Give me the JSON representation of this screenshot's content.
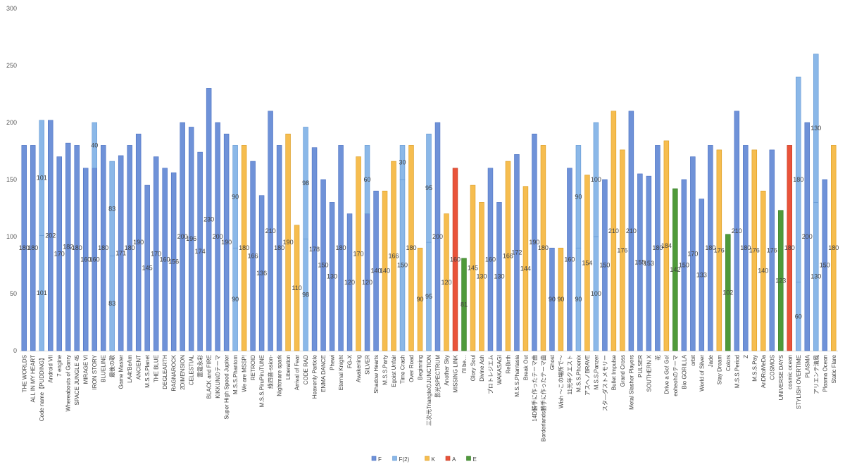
{
  "chart_data": {
    "type": "bar",
    "stacked": true,
    "ylim": [
      0,
      300
    ],
    "yticks": [
      0,
      50,
      100,
      150,
      200,
      250,
      300
    ],
    "grid": false,
    "legend_position": "bottom",
    "colors": {
      "F": "#6f92d8",
      "F(2)": "#8bb8e8",
      "K": "#f6bd4f",
      "A": "#e9533a",
      "E": "#4f9a3a"
    },
    "bars": [
      {
        "label": "THE WORLDS",
        "segments": [
          {
            "s": "F",
            "v": 180
          }
        ],
        "labels": [
          "180"
        ]
      },
      {
        "label": "ALL IN MY HEART",
        "segments": [
          {
            "s": "F",
            "v": 180
          }
        ],
        "labels": [
          "180"
        ]
      },
      {
        "label": "Code name【PUDDING】",
        "segments": [
          {
            "s": "F(2)",
            "v": 101
          },
          {
            "s": "F(2)",
            "v": 101
          }
        ],
        "labels": [
          "101",
          "101"
        ]
      },
      {
        "label": "Android VII",
        "segments": [
          {
            "s": "F",
            "v": 202
          }
        ],
        "labels": [
          "202"
        ]
      },
      {
        "label": "7 engine",
        "segments": [
          {
            "s": "F",
            "v": 170
          }
        ],
        "labels": [
          "170"
        ]
      },
      {
        "label": "Whereabouts of Ganry",
        "segments": [
          {
            "s": "F",
            "v": 182
          }
        ],
        "labels": [
          "182"
        ]
      },
      {
        "label": "SPACE JUNGLE 45",
        "segments": [
          {
            "s": "F",
            "v": 180
          }
        ],
        "labels": [
          "180"
        ]
      },
      {
        "label": "MIRAGE VI",
        "segments": [
          {
            "s": "F",
            "v": 160
          }
        ],
        "labels": [
          "160"
        ]
      },
      {
        "label": "IRON STORY",
        "segments": [
          {
            "s": "F",
            "v": 160
          },
          {
            "s": "F(2)",
            "v": 40
          }
        ],
        "labels": [
          "160",
          "40"
        ]
      },
      {
        "label": "BLUELINE",
        "segments": [
          {
            "s": "F",
            "v": 180
          }
        ],
        "labels": [
          "180"
        ]
      },
      {
        "label": "最後の歌",
        "segments": [
          {
            "s": "F(2)",
            "v": 83
          },
          {
            "s": "F(2)",
            "v": 83
          }
        ],
        "labels": [
          "83",
          "83"
        ]
      },
      {
        "label": "Game Master",
        "segments": [
          {
            "s": "F",
            "v": 171
          }
        ],
        "labels": [
          "171"
        ]
      },
      {
        "label": "LA4t'BeAm",
        "segments": [
          {
            "s": "F",
            "v": 180
          }
        ],
        "labels": [
          "180"
        ]
      },
      {
        "label": "ANCIENT",
        "segments": [
          {
            "s": "F",
            "v": 190
          }
        ],
        "labels": [
          "190"
        ]
      },
      {
        "label": "M.S.S.Planet",
        "segments": [
          {
            "s": "F",
            "v": 145
          }
        ],
        "labels": [
          "145"
        ]
      },
      {
        "label": "THE BLUE",
        "segments": [
          {
            "s": "F",
            "v": 170
          }
        ],
        "labels": [
          "170"
        ]
      },
      {
        "label": "DEGLEARTH",
        "segments": [
          {
            "s": "F",
            "v": 160
          }
        ],
        "labels": [
          "160"
        ]
      },
      {
        "label": "RAGNAROCK",
        "segments": [
          {
            "s": "F",
            "v": 156
          }
        ],
        "labels": [
          "156"
        ]
      },
      {
        "label": "2DIMENSION",
        "segments": [
          {
            "s": "F",
            "v": 200
          }
        ],
        "labels": [
          "200"
        ]
      },
      {
        "label": "CELESTIAL",
        "segments": [
          {
            "s": "F",
            "v": 196
          }
        ],
        "labels": [
          "196"
        ]
      },
      {
        "label": "雷霆永彩",
        "segments": [
          {
            "s": "F",
            "v": 174
          }
        ],
        "labels": [
          "174"
        ]
      },
      {
        "label": "BLACK and FIRE",
        "segments": [
          {
            "s": "F",
            "v": 230
          }
        ],
        "labels": [
          "230"
        ]
      },
      {
        "label": "KIKKUNのテーマ",
        "segments": [
          {
            "s": "F",
            "v": 200
          }
        ],
        "labels": [
          "200"
        ]
      },
      {
        "label": "Super High Speed Jupiter",
        "segments": [
          {
            "s": "F",
            "v": 190
          }
        ],
        "labels": [
          "190"
        ]
      },
      {
        "label": "M.S.S.Phantom",
        "segments": [
          {
            "s": "F(2)",
            "v": 90
          },
          {
            "s": "F(2)",
            "v": 90
          }
        ],
        "labels": [
          "90",
          "90"
        ]
      },
      {
        "label": "We are MSSP!",
        "segments": [
          {
            "s": "K",
            "v": 180
          }
        ],
        "labels": [
          "180"
        ]
      },
      {
        "label": "RETROID",
        "segments": [
          {
            "s": "F",
            "v": 166
          }
        ],
        "labels": [
          "166"
        ]
      },
      {
        "label": "M.S.S.PiruPiruTUNE",
        "segments": [
          {
            "s": "F",
            "v": 136
          }
        ],
        "labels": [
          "136"
        ]
      },
      {
        "label": "綠四音-ssion-",
        "segments": [
          {
            "s": "F",
            "v": 210
          }
        ],
        "labels": [
          "210"
        ]
      },
      {
        "label": "Nightmare spark",
        "segments": [
          {
            "s": "F",
            "v": 180
          }
        ],
        "labels": [
          "180"
        ]
      },
      {
        "label": "Liberation",
        "segments": [
          {
            "s": "K",
            "v": 190
          }
        ],
        "labels": [
          "190"
        ]
      },
      {
        "label": "Arrival of Fear",
        "segments": [
          {
            "s": "K",
            "v": 110
          }
        ],
        "labels": [
          "110"
        ]
      },
      {
        "label": "CODE RAD",
        "segments": [
          {
            "s": "F(2)",
            "v": 98
          },
          {
            "s": "F(2)",
            "v": 98
          }
        ],
        "labels": [
          "98",
          "98"
        ]
      },
      {
        "label": "Heavenly Particle",
        "segments": [
          {
            "s": "F",
            "v": 178
          }
        ],
        "labels": [
          "178"
        ]
      },
      {
        "label": "ENMA DANCE",
        "segments": [
          {
            "s": "F",
            "v": 150
          }
        ],
        "labels": [
          "150"
        ]
      },
      {
        "label": "Phewi",
        "segments": [
          {
            "s": "F",
            "v": 130
          }
        ],
        "labels": [
          "130"
        ]
      },
      {
        "label": "Eternal Knight",
        "segments": [
          {
            "s": "F",
            "v": 180
          }
        ],
        "labels": [
          "180"
        ]
      },
      {
        "label": "FG-X",
        "segments": [
          {
            "s": "F",
            "v": 120
          }
        ],
        "labels": [
          "120"
        ]
      },
      {
        "label": "Awakening",
        "segments": [
          {
            "s": "K",
            "v": 170
          }
        ],
        "labels": [
          "170"
        ]
      },
      {
        "label": "SILVER",
        "segments": [
          {
            "s": "F",
            "v": 120
          },
          {
            "s": "F(2)",
            "v": 60
          }
        ],
        "labels": [
          "120",
          "60"
        ]
      },
      {
        "label": "Shadow Hearts",
        "segments": [
          {
            "s": "F",
            "v": 140
          }
        ],
        "labels": [
          "140"
        ]
      },
      {
        "label": "M.S.S.Party",
        "segments": [
          {
            "s": "K",
            "v": 140
          }
        ],
        "labels": [
          "140"
        ]
      },
      {
        "label": "Egoist Unfair",
        "segments": [
          {
            "s": "K",
            "v": 166
          }
        ],
        "labels": [
          "166"
        ]
      },
      {
        "label": "Time Crash",
        "segments": [
          {
            "s": "F(2)",
            "v": 150
          },
          {
            "s": "F(2)",
            "v": 30
          }
        ],
        "labels": [
          "150",
          "30"
        ]
      },
      {
        "label": "Over Road",
        "segments": [
          {
            "s": "K",
            "v": 180
          }
        ],
        "labels": [
          "180"
        ]
      },
      {
        "label": "Beginning",
        "segments": [
          {
            "s": "K",
            "v": 90
          }
        ],
        "labels": [
          "90"
        ]
      },
      {
        "label": "三次元TriangleのJUNCTION",
        "segments": [
          {
            "s": "F(2)",
            "v": 95
          },
          {
            "s": "F(2)",
            "v": 95
          }
        ],
        "labels": [
          "95",
          "95"
        ]
      },
      {
        "label": "影光SPECTRUM",
        "segments": [
          {
            "s": "F",
            "v": 200
          }
        ],
        "labels": [
          "200"
        ]
      },
      {
        "label": "Another Sky",
        "segments": [
          {
            "s": "K",
            "v": 120
          }
        ],
        "labels": [
          "120"
        ]
      },
      {
        "label": "MISSING LINK",
        "segments": [
          {
            "s": "A",
            "v": 160
          }
        ],
        "labels": [
          "160"
        ]
      },
      {
        "label": "I'll be…",
        "segments": [
          {
            "s": "E",
            "v": 81
          }
        ],
        "labels": [
          "81"
        ]
      },
      {
        "label": "Glory Soul",
        "segments": [
          {
            "s": "K",
            "v": 145
          }
        ],
        "labels": [
          "145"
        ]
      },
      {
        "label": "Divine Ash",
        "segments": [
          {
            "s": "K",
            "v": 130
          }
        ],
        "labels": [
          "130"
        ]
      },
      {
        "label": "プロトレジエム",
        "segments": [
          {
            "s": "F",
            "v": 160
          }
        ],
        "labels": [
          "160"
        ]
      },
      {
        "label": "WAKASAGI",
        "segments": [
          {
            "s": "F",
            "v": 130
          }
        ],
        "labels": [
          "130"
        ]
      },
      {
        "label": "ReBirth",
        "segments": [
          {
            "s": "K",
            "v": 166
          }
        ],
        "labels": [
          "166"
        ]
      },
      {
        "label": "M.S.S.Phantasia",
        "segments": [
          {
            "s": "F",
            "v": 172
          }
        ],
        "labels": [
          "172"
        ]
      },
      {
        "label": "Break Out",
        "segments": [
          {
            "s": "K",
            "v": 144
          }
        ],
        "labels": [
          "144"
        ]
      },
      {
        "label": "14D勝手に作ったテーマ曲",
        "segments": [
          {
            "s": "F",
            "v": 190
          }
        ],
        "labels": [
          "190"
        ]
      },
      {
        "label": "Borderlands勝手に作ったテーマ曲",
        "segments": [
          {
            "s": "K",
            "v": 180
          }
        ],
        "labels": [
          "180"
        ]
      },
      {
        "label": "Ghost",
        "segments": [
          {
            "s": "F",
            "v": 90
          }
        ],
        "labels": [
          "90"
        ]
      },
      {
        "label": "Wish ～この場所で～",
        "segments": [
          {
            "s": "K",
            "v": 90
          }
        ],
        "labels": [
          "90"
        ]
      },
      {
        "label": "11光年クエスト",
        "segments": [
          {
            "s": "F",
            "v": 160
          }
        ],
        "labels": [
          "160"
        ]
      },
      {
        "label": "M.S.S.Phoenix",
        "segments": [
          {
            "s": "F(2)",
            "v": 90
          },
          {
            "s": "F(2)",
            "v": 90
          }
        ],
        "labels": [
          "90",
          "90"
        ]
      },
      {
        "label": "アスヘノBRAVE",
        "segments": [
          {
            "s": "K",
            "v": 154
          }
        ],
        "labels": [
          "154"
        ]
      },
      {
        "label": "M.S.S.Panzer",
        "segments": [
          {
            "s": "F(2)",
            "v": 100
          },
          {
            "s": "F(2)",
            "v": 100
          }
        ],
        "labels": [
          "100",
          "100"
        ]
      },
      {
        "label": "スタ―ダストメモリー",
        "segments": [
          {
            "s": "F",
            "v": 150
          }
        ],
        "labels": [
          "150"
        ]
      },
      {
        "label": "Bullet Impulse",
        "segments": [
          {
            "s": "K",
            "v": 210
          }
        ],
        "labels": [
          "210"
        ]
      },
      {
        "label": "Grand Cross",
        "segments": [
          {
            "s": "K",
            "v": 176
          }
        ],
        "labels": [
          "176"
        ]
      },
      {
        "label": "Metal Slasher Players",
        "segments": [
          {
            "s": "F",
            "v": 210
          }
        ],
        "labels": [
          "210"
        ]
      },
      {
        "label": "PULSER",
        "segments": [
          {
            "s": "F",
            "v": 155
          }
        ],
        "labels": [
          "155"
        ]
      },
      {
        "label": "SOUTHERN X",
        "segments": [
          {
            "s": "F",
            "v": 153
          }
        ],
        "labels": [
          "153"
        ]
      },
      {
        "label": "花",
        "segments": [
          {
            "s": "F",
            "v": 180
          }
        ],
        "labels": [
          "180"
        ]
      },
      {
        "label": "Drive a Go! Go!",
        "segments": [
          {
            "s": "K",
            "v": 184
          }
        ],
        "labels": [
          "184"
        ]
      },
      {
        "label": "eoheohのテーマ",
        "segments": [
          {
            "s": "E",
            "v": 142
          }
        ],
        "labels": [
          "142"
        ]
      },
      {
        "label": "Bio GORILLA",
        "segments": [
          {
            "s": "F",
            "v": 150
          }
        ],
        "labels": [
          "150"
        ]
      },
      {
        "label": "orbit",
        "segments": [
          {
            "s": "F",
            "v": 170
          }
        ],
        "labels": [
          "170"
        ]
      },
      {
        "label": "World of Silver",
        "segments": [
          {
            "s": "F",
            "v": 133
          }
        ],
        "labels": [
          "133"
        ]
      },
      {
        "label": "Jade",
        "segments": [
          {
            "s": "F",
            "v": 180
          }
        ],
        "labels": [
          "180"
        ]
      },
      {
        "label": "Stay Dream",
        "segments": [
          {
            "s": "K",
            "v": 176
          }
        ],
        "labels": [
          "176"
        ]
      },
      {
        "label": "Colors",
        "segments": [
          {
            "s": "E",
            "v": 102
          }
        ],
        "labels": [
          "102"
        ]
      },
      {
        "label": "M.S.S.Period",
        "segments": [
          {
            "s": "F",
            "v": 210
          }
        ],
        "labels": [
          "210"
        ]
      },
      {
        "label": "Z",
        "segments": [
          {
            "s": "F",
            "v": 180
          }
        ],
        "labels": [
          "180"
        ]
      },
      {
        "label": "M.S.S.Pay",
        "segments": [
          {
            "s": "K",
            "v": 176
          }
        ],
        "labels": [
          "176"
        ]
      },
      {
        "label": "AnDRoMeDa",
        "segments": [
          {
            "s": "K",
            "v": 140
          }
        ],
        "labels": [
          "140"
        ]
      },
      {
        "label": "COSMOS",
        "segments": [
          {
            "s": "F",
            "v": 176
          }
        ],
        "labels": [
          "176"
        ]
      },
      {
        "label": "UNIVERSE DAYS",
        "segments": [
          {
            "s": "E",
            "v": 123
          }
        ],
        "labels": [
          "123"
        ]
      },
      {
        "label": "cosmic ocean",
        "segments": [
          {
            "s": "A",
            "v": 180
          }
        ],
        "labels": [
          "180"
        ]
      },
      {
        "label": "STYLISH OVERTIME",
        "segments": [
          {
            "s": "F(2)",
            "v": 60
          },
          {
            "s": "F(2)",
            "v": 180
          }
        ],
        "labels": [
          "60",
          "180"
        ]
      },
      {
        "label": "PLASMA",
        "segments": [
          {
            "s": "F",
            "v": 200
          }
        ],
        "labels": [
          "200"
        ]
      },
      {
        "label": "アリエンテ清風",
        "segments": [
          {
            "s": "F(2)",
            "v": 130
          },
          {
            "s": "F(2)",
            "v": 130
          }
        ],
        "labels": [
          "130",
          "130"
        ]
      },
      {
        "label": "Plasma Ocean",
        "segments": [
          {
            "s": "F",
            "v": 150
          }
        ],
        "labels": [
          "150"
        ]
      },
      {
        "label": "Static Flare",
        "segments": [
          {
            "s": "K",
            "v": 180
          }
        ],
        "labels": [
          "180"
        ]
      }
    ],
    "legend": [
      {
        "name": "F",
        "key": "F"
      },
      {
        "name": "F(2)",
        "key": "F(2)"
      },
      {
        "name": "K",
        "key": "K"
      },
      {
        "name": "A",
        "key": "A"
      },
      {
        "name": "E",
        "key": "E"
      }
    ]
  }
}
